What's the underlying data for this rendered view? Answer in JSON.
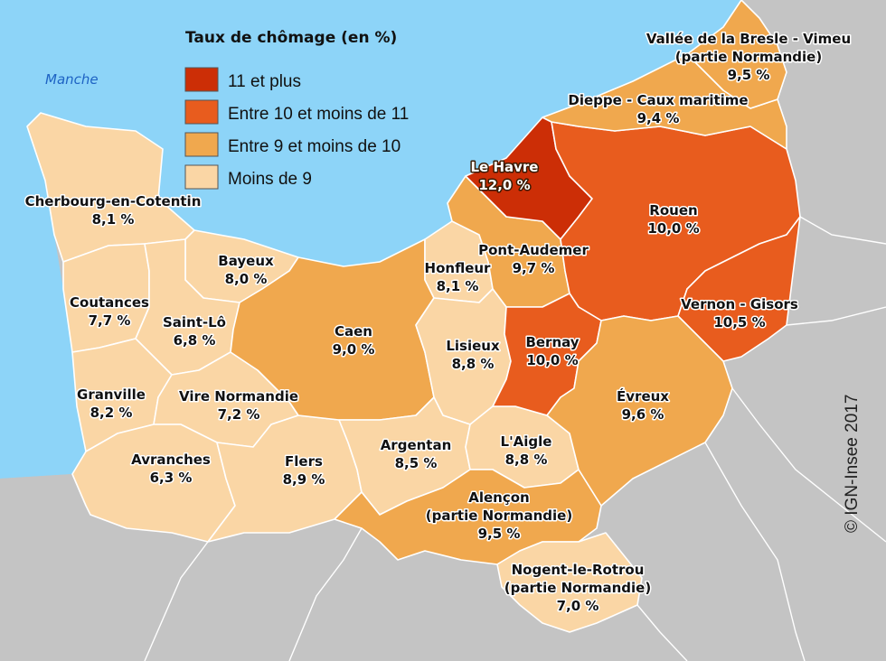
{
  "legend": {
    "title": "Taux de chômage (en %)",
    "classes": [
      {
        "label": "11 et plus",
        "color": "#cc2e06"
      },
      {
        "label": "Entre 10 et moins de 11",
        "color": "#e85c1e"
      },
      {
        "label": "Entre 9 et moins de 10",
        "color": "#f0a84e"
      },
      {
        "label": "Moins de 9",
        "color": "#fad6a5"
      }
    ]
  },
  "sea_label": "Manche",
  "copyright": "© IGN-Insee 2017",
  "colors": {
    "sea": "#8dd4f8",
    "land_outside": "#c4c4c4",
    "border": "#ffffff"
  },
  "zones": [
    {
      "id": "cherbourg",
      "name": "Cherbourg-en-Cotentin",
      "value": "8,1 %",
      "class": 3
    },
    {
      "id": "bayeux",
      "name": "Bayeux",
      "value": "8,0 %",
      "class": 3
    },
    {
      "id": "coutances",
      "name": "Coutances",
      "value": "7,7 %",
      "class": 3
    },
    {
      "id": "saintlo",
      "name": "Saint-Lô",
      "value": "6,8 %",
      "class": 3
    },
    {
      "id": "granville",
      "name": "Granville",
      "value": "8,2 %",
      "class": 3
    },
    {
      "id": "vire",
      "name": "Vire Normandie",
      "value": "7,2 %",
      "class": 3
    },
    {
      "id": "avranches",
      "name": "Avranches",
      "value": "6,3 %",
      "class": 3
    },
    {
      "id": "flers",
      "name": "Flers",
      "value": "8,9 %",
      "class": 3
    },
    {
      "id": "caen",
      "name": "Caen",
      "value": "9,0 %",
      "class": 2
    },
    {
      "id": "honfleur",
      "name": "Honfleur",
      "value": "8,1 %",
      "class": 3
    },
    {
      "id": "pontaudemer",
      "name": "Pont-Audemer",
      "value": "9,7 %",
      "class": 2
    },
    {
      "id": "lisieux",
      "name": "Lisieux",
      "value": "8,8 %",
      "class": 3
    },
    {
      "id": "argentan",
      "name": "Argentan",
      "value": "8,5 %",
      "class": 3
    },
    {
      "id": "laigle",
      "name": "L'Aigle",
      "value": "8,8 %",
      "class": 3
    },
    {
      "id": "alencon",
      "name": "Alençon",
      "name2": "(partie Normandie)",
      "value": "9,5 %",
      "class": 2
    },
    {
      "id": "nogent",
      "name": "Nogent-le-Rotrou",
      "name2": "(partie Normandie)",
      "value": "7,0 %",
      "class": 3
    },
    {
      "id": "lehavre",
      "name": "Le Havre",
      "value": "12,0 %",
      "class": 0
    },
    {
      "id": "rouen",
      "name": "Rouen",
      "value": "10,0 %",
      "class": 1
    },
    {
      "id": "bernay",
      "name": "Bernay",
      "value": "10,0 %",
      "class": 1
    },
    {
      "id": "vernon",
      "name": "Vernon - Gisors",
      "value": "10,5 %",
      "class": 1
    },
    {
      "id": "evreux",
      "name": "Évreux",
      "value": "9,6 %",
      "class": 2
    },
    {
      "id": "dieppe",
      "name": "Dieppe - Caux maritime",
      "value": "9,4 %",
      "class": 2
    },
    {
      "id": "bresle",
      "name": "Vallée de la Bresle - Vimeu",
      "name2": "(partie Normandie)",
      "value": "9,5 %",
      "class": 2
    }
  ]
}
